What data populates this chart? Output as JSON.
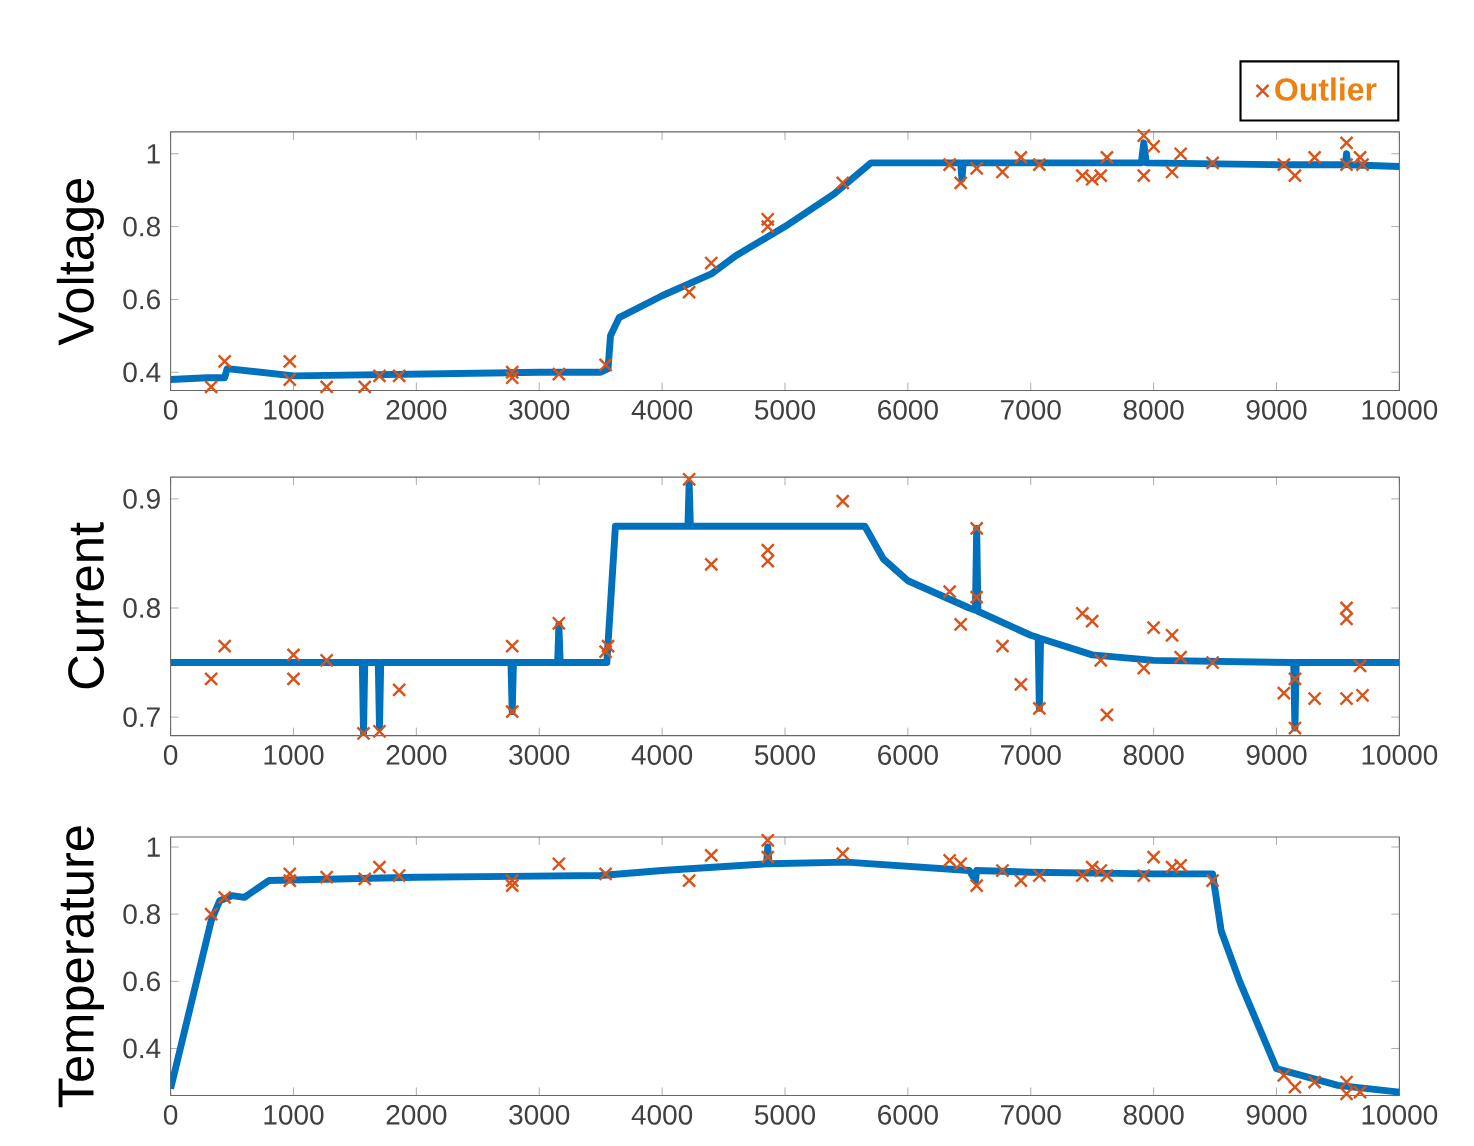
{
  "chart_data": [
    {
      "type": "line",
      "ylabel": "Voltage",
      "xlim": [
        0,
        10000
      ],
      "ylim": [
        0.35,
        1.06
      ],
      "xticks": [
        0,
        1000,
        2000,
        3000,
        4000,
        5000,
        6000,
        7000,
        8000,
        9000,
        10000
      ],
      "yticks": [
        0.4,
        0.6,
        0.8,
        1
      ],
      "legend": "top right",
      "series": [
        {
          "color": "#0072bd",
          "marker": "none",
          "x": [
            0,
            300,
            440,
            460,
            1000,
            2000,
            3000,
            3500,
            3560,
            3580,
            3650,
            4000,
            4400,
            4600,
            5000,
            5400,
            5700,
            6000,
            6430,
            6440,
            6450,
            7000,
            7900,
            7920,
            7940,
            9000,
            9560,
            9570,
            9580,
            10000
          ],
          "values": [
            0.38,
            0.385,
            0.385,
            0.41,
            0.39,
            0.395,
            0.4,
            0.4,
            0.41,
            0.5,
            0.55,
            0.61,
            0.67,
            0.72,
            0.8,
            0.89,
            0.975,
            0.975,
            0.975,
            0.93,
            0.975,
            0.975,
            0.975,
            1.03,
            0.975,
            0.97,
            0.97,
            1.0,
            0.97,
            0.965
          ]
        },
        {
          "type": "scatter",
          "name": "Outlier",
          "color": "#d95319",
          "marker": "cross",
          "x": [
            330,
            440,
            970,
            970,
            1270,
            1580,
            1700,
            1860,
            2780,
            2780,
            3160,
            3540,
            4220,
            4400,
            4860,
            4860,
            5470,
            6340,
            6430,
            6560,
            6770,
            6920,
            7070,
            7420,
            7500,
            7570,
            7620,
            7920,
            7920,
            8000,
            8150,
            8220,
            8480,
            9060,
            9150,
            9310,
            9570,
            9570,
            9680,
            9700
          ],
          "values": [
            0.36,
            0.43,
            0.43,
            0.38,
            0.36,
            0.36,
            0.39,
            0.39,
            0.4,
            0.385,
            0.395,
            0.42,
            0.62,
            0.7,
            0.82,
            0.8,
            0.92,
            0.97,
            0.92,
            0.96,
            0.95,
            0.99,
            0.97,
            0.94,
            0.93,
            0.94,
            0.99,
            1.05,
            0.94,
            1.02,
            0.95,
            1.0,
            0.975,
            0.97,
            0.94,
            0.99,
            1.03,
            0.97,
            0.99,
            0.97
          ]
        }
      ]
    },
    {
      "type": "line",
      "ylabel": "Current",
      "xlim": [
        0,
        10000
      ],
      "ylim": [
        0.683,
        0.92
      ],
      "xticks": [
        0,
        1000,
        2000,
        3000,
        4000,
        5000,
        6000,
        7000,
        8000,
        9000,
        10000
      ],
      "yticks": [
        0.7,
        0.8,
        0.9
      ],
      "series": [
        {
          "color": "#0072bd",
          "marker": "none",
          "x": [
            0,
            1560,
            1570,
            1580,
            1690,
            1700,
            1710,
            2770,
            2780,
            2790,
            3150,
            3160,
            3170,
            3550,
            3620,
            4210,
            4220,
            4230,
            5650,
            5800,
            6000,
            6500,
            6550,
            6560,
            6570,
            7000,
            7060,
            7070,
            7080,
            7500,
            8000,
            9140,
            9150,
            9160,
            10000
          ],
          "values": [
            0.75,
            0.75,
            0.685,
            0.75,
            0.75,
            0.69,
            0.75,
            0.75,
            0.705,
            0.75,
            0.75,
            0.785,
            0.75,
            0.75,
            0.875,
            0.875,
            0.915,
            0.875,
            0.875,
            0.845,
            0.825,
            0.8,
            0.798,
            0.873,
            0.797,
            0.775,
            0.773,
            0.708,
            0.772,
            0.757,
            0.752,
            0.75,
            0.69,
            0.75,
            0.75
          ]
        },
        {
          "type": "scatter",
          "color": "#d95319",
          "marker": "cross",
          "x": [
            330,
            440,
            1000,
            1000,
            1270,
            1570,
            1700,
            1860,
            2780,
            2780,
            3160,
            3540,
            3560,
            4220,
            4400,
            4860,
            4860,
            5470,
            6340,
            6430,
            6560,
            6560,
            6770,
            6920,
            7070,
            7420,
            7500,
            7570,
            7620,
            7920,
            8000,
            8150,
            8220,
            8480,
            9060,
            9150,
            9150,
            9310,
            9570,
            9570,
            9570,
            9680,
            9700
          ],
          "values": [
            0.735,
            0.765,
            0.757,
            0.735,
            0.752,
            0.685,
            0.687,
            0.725,
            0.705,
            0.765,
            0.786,
            0.76,
            0.765,
            0.918,
            0.84,
            0.843,
            0.853,
            0.898,
            0.815,
            0.785,
            0.81,
            0.873,
            0.765,
            0.73,
            0.708,
            0.795,
            0.788,
            0.752,
            0.702,
            0.745,
            0.782,
            0.775,
            0.755,
            0.75,
            0.722,
            0.735,
            0.69,
            0.717,
            0.8,
            0.79,
            0.717,
            0.747,
            0.72
          ]
        }
      ]
    },
    {
      "type": "line",
      "ylabel": "Temperature",
      "xlim": [
        0,
        10000
      ],
      "ylim": [
        0.26,
        1.03
      ],
      "xticks": [
        0,
        1000,
        2000,
        3000,
        4000,
        5000,
        6000,
        7000,
        8000,
        9000,
        10000
      ],
      "yticks": [
        0.4,
        0.6,
        0.8,
        1
      ],
      "series": [
        {
          "color": "#0072bd",
          "marker": "none",
          "x": [
            0,
            330,
            400,
            500,
            600,
            800,
            2000,
            3500,
            4000,
            4850,
            4860,
            4870,
            5500,
            6500,
            6550,
            6560,
            7000,
            8000,
            8480,
            8550,
            8700,
            9000,
            9500,
            10000
          ],
          "values": [
            0.28,
            0.78,
            0.84,
            0.855,
            0.85,
            0.9,
            0.91,
            0.915,
            0.93,
            0.95,
            1.0,
            0.95,
            0.955,
            0.93,
            0.9,
            0.93,
            0.925,
            0.92,
            0.92,
            0.75,
            0.6,
            0.34,
            0.29,
            0.27
          ]
        },
        {
          "type": "scatter",
          "color": "#d95319",
          "marker": "cross",
          "x": [
            330,
            440,
            970,
            970,
            1270,
            1580,
            1700,
            1860,
            2780,
            2780,
            3160,
            3540,
            4220,
            4400,
            4860,
            4860,
            5470,
            6340,
            6430,
            6560,
            6770,
            6920,
            7070,
            7420,
            7500,
            7570,
            7620,
            7920,
            8000,
            8150,
            8220,
            8480,
            9060,
            9150,
            9310,
            9570,
            9570,
            9680
          ],
          "values": [
            0.8,
            0.85,
            0.92,
            0.9,
            0.91,
            0.905,
            0.94,
            0.915,
            0.9,
            0.885,
            0.95,
            0.92,
            0.9,
            0.975,
            1.02,
            0.97,
            0.98,
            0.96,
            0.95,
            0.885,
            0.93,
            0.9,
            0.915,
            0.915,
            0.94,
            0.93,
            0.915,
            0.915,
            0.97,
            0.94,
            0.945,
            0.9,
            0.32,
            0.285,
            0.3,
            0.3,
            0.265,
            0.27
          ]
        }
      ]
    }
  ]
}
